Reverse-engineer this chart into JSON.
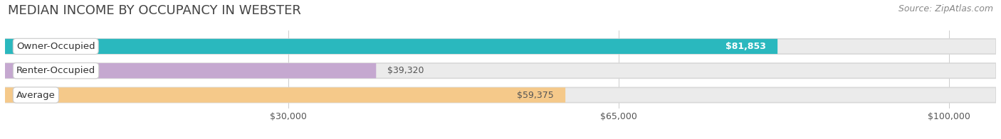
{
  "title": "MEDIAN INCOME BY OCCUPANCY IN WEBSTER",
  "source": "Source: ZipAtlas.com",
  "categories": [
    "Owner-Occupied",
    "Renter-Occupied",
    "Average"
  ],
  "values": [
    81853,
    39320,
    59375
  ],
  "bar_colors": [
    "#2ab8be",
    "#c5a8d0",
    "#f5c98a"
  ],
  "label_texts": [
    "$81,853",
    "$39,320",
    "$59,375"
  ],
  "label_colors": [
    "#ffffff",
    "#555555",
    "#555555"
  ],
  "x_ticks": [
    30000,
    65000,
    100000
  ],
  "x_tick_labels": [
    "$30,000",
    "$65,000",
    "$100,000"
  ],
  "xmax": 105000,
  "background_color": "#ffffff",
  "bar_bg_color": "#ebebeb",
  "bar_bg_edge_color": "#d8d8d8",
  "title_fontsize": 13,
  "source_fontsize": 9,
  "label_fontsize": 9,
  "category_fontsize": 9.5,
  "tick_fontsize": 9
}
